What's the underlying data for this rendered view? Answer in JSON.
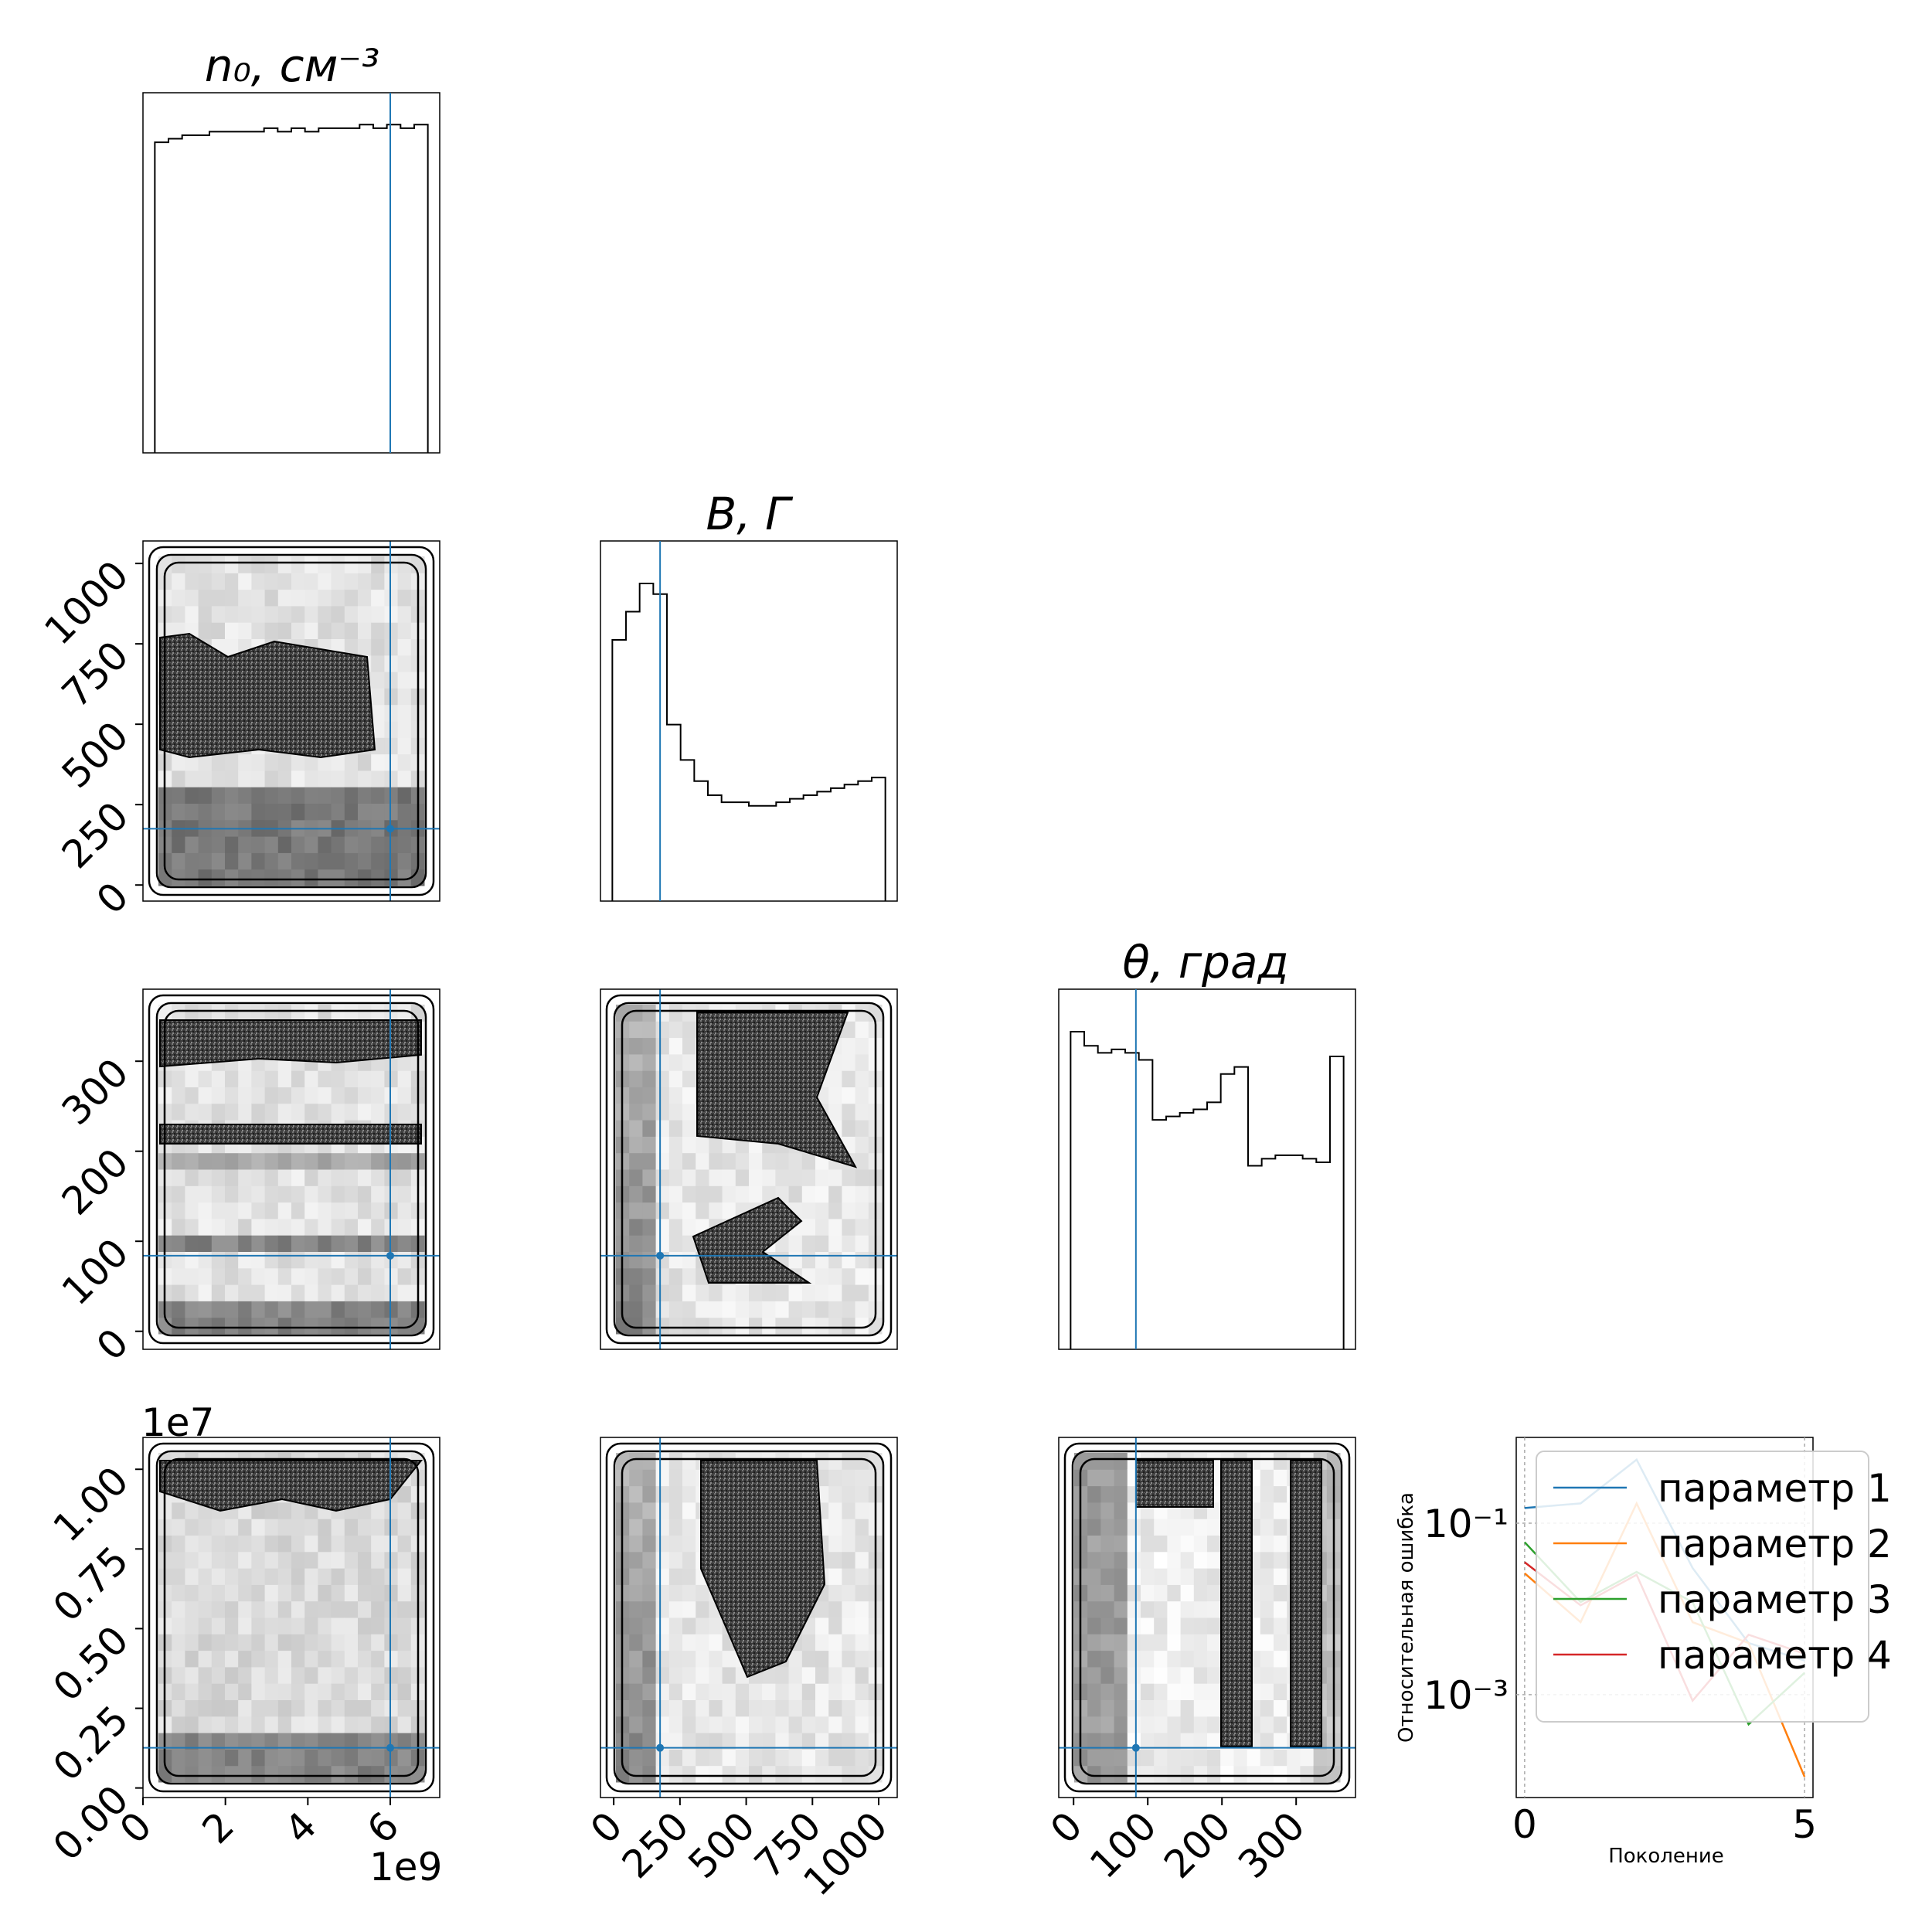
{
  "chart_data": {
    "type": "corner",
    "params": [
      {
        "title": "n₀, см⁻³",
        "title_sup": "",
        "range": [
          0,
          7200000000
        ],
        "truth": 6000000000
      },
      {
        "title": "B, Г",
        "range": [
          -50,
          1070
        ],
        "truth": 175
      },
      {
        "title": "θ, град",
        "range": [
          -20,
          380
        ],
        "truth": 84
      },
      {
        "title": "",
        "range": [
          -300000,
          11000000
        ],
        "truth": 1260000
      }
    ],
    "axes": {
      "n0_ticks": [
        "0",
        "2",
        "4",
        "6"
      ],
      "n0_offset": "1e9",
      "B_ticks": [
        "0",
        "250",
        "500",
        "750",
        "1000"
      ],
      "theta_ticks": [
        "0",
        "100",
        "200",
        "300"
      ],
      "p4_ticks": [
        "0.00",
        "0.25",
        "0.50",
        "0.75",
        "1.00"
      ],
      "p4_offset": "1e7"
    },
    "hist_n0": [
      0.88,
      0.89,
      0.9,
      0.9,
      0.91,
      0.91,
      0.91,
      0.91,
      0.92,
      0.91,
      0.92,
      0.91,
      0.92,
      0.92,
      0.92,
      0.93,
      0.92,
      0.93,
      0.92,
      0.93
    ],
    "hist_B": [
      0.74,
      0.82,
      0.9,
      0.87,
      0.5,
      0.4,
      0.34,
      0.3,
      0.28,
      0.28,
      0.27,
      0.27,
      0.28,
      0.29,
      0.3,
      0.31,
      0.32,
      0.33,
      0.34,
      0.35
    ],
    "hist_theta": [
      0.9,
      0.86,
      0.84,
      0.85,
      0.84,
      0.82,
      0.65,
      0.66,
      0.67,
      0.68,
      0.7,
      0.78,
      0.8,
      0.52,
      0.54,
      0.55,
      0.55,
      0.54,
      0.53,
      0.83
    ],
    "error_plot": {
      "type": "line",
      "xlabel": "Поколение",
      "ylabel": "Относительная ошибка",
      "x_ticks": [
        "0",
        "5"
      ],
      "y_ticks": [
        "10⁻¹",
        "10⁻³"
      ],
      "xlim": [
        0,
        5
      ],
      "ylog": true,
      "ylim_log10": [
        -4.2,
        -0.0
      ],
      "x": [
        0,
        1,
        2,
        3,
        4,
        5
      ],
      "series": [
        {
          "name": "параметр 1",
          "color": "#1f77b4",
          "values": [
            0.15,
            0.17,
            0.55,
            0.03,
            0.004,
            0.0025
          ]
        },
        {
          "name": "параметр 2",
          "color": "#ff7f0e",
          "values": [
            0.026,
            0.007,
            0.17,
            0.007,
            0.004,
            0.00011
          ]
        },
        {
          "name": "параметр 3",
          "color": "#2ca02c",
          "values": [
            0.06,
            0.012,
            0.027,
            0.012,
            0.00045,
            0.0018
          ]
        },
        {
          "name": "параметр 4",
          "color": "#d62728",
          "values": [
            0.035,
            0.011,
            0.025,
            0.00085,
            0.005,
            0.003
          ]
        }
      ]
    }
  }
}
